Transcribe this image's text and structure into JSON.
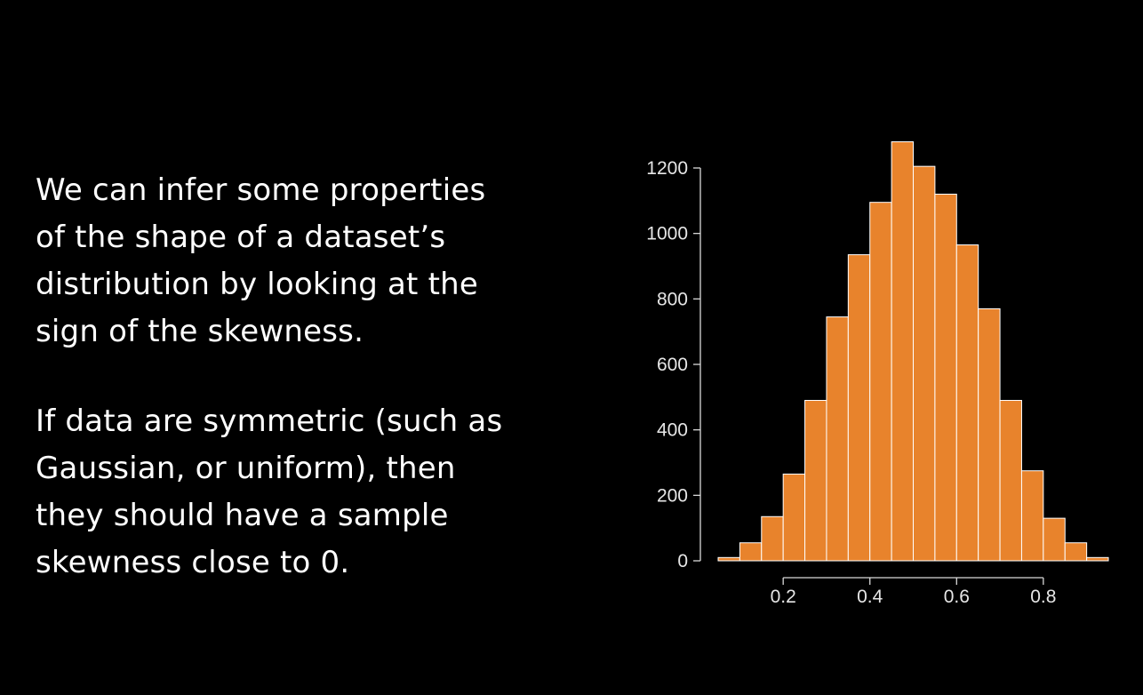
{
  "text": {
    "paragraph1": [
      "We can infer some properties",
      "of the shape of a dataset’s",
      "distribution by looking at the",
      "sign of the skewness."
    ],
    "paragraph2": [
      "If data are symmetric (such as",
      "Gaussian, or uniform), then",
      "they should have a sample",
      "skewness close to 0."
    ]
  },
  "chart_data": {
    "type": "bar",
    "subtype": "histogram",
    "title": "",
    "xlabel": "",
    "ylabel": "",
    "bin_width": 0.05,
    "bin_start": 0.05,
    "values": [
      10,
      55,
      135,
      265,
      490,
      745,
      935,
      1095,
      1280,
      1205,
      1120,
      965,
      770,
      490,
      275,
      130,
      55,
      10
    ],
    "ylim": [
      0,
      1200
    ],
    "yticks": [
      0,
      200,
      400,
      600,
      800,
      1000,
      1200
    ],
    "xticks": [
      0.2,
      0.4,
      0.6,
      0.8
    ],
    "bar_color": "#e8832c",
    "grid": false
  }
}
